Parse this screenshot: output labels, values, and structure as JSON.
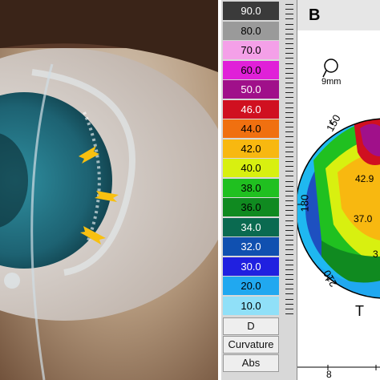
{
  "photo": {
    "arrows": [
      "arrow-1",
      "arrow-2",
      "arrow-3"
    ]
  },
  "scale": {
    "items": [
      {
        "label": "90.0",
        "color": "#3a3a3a",
        "text": "#ffffff"
      },
      {
        "label": "80.0",
        "color": "#9a9a9a",
        "text": "#000000"
      },
      {
        "label": "70.0",
        "color": "#f4a0e8",
        "text": "#000000"
      },
      {
        "label": "60.0",
        "color": "#e020d8",
        "text": "#000000"
      },
      {
        "label": "50.0",
        "color": "#a0108a",
        "text": "#ffffff"
      },
      {
        "label": "46.0",
        "color": "#d01020",
        "text": "#ffffff"
      },
      {
        "label": "44.0",
        "color": "#f07010",
        "text": "#000000"
      },
      {
        "label": "42.0",
        "color": "#f8b810",
        "text": "#000000"
      },
      {
        "label": "40.0",
        "color": "#d8f010",
        "text": "#000000"
      },
      {
        "label": "38.0",
        "color": "#20c020",
        "text": "#000000"
      },
      {
        "label": "36.0",
        "color": "#108a20",
        "text": "#000000"
      },
      {
        "label": "34.0",
        "color": "#0a6a50",
        "text": "#ffffff"
      },
      {
        "label": "32.0",
        "color": "#1050b0",
        "text": "#ffffff"
      },
      {
        "label": "30.0",
        "color": "#2020e0",
        "text": "#ffffff"
      },
      {
        "label": "20.0",
        "color": "#20a8f0",
        "text": "#000000"
      },
      {
        "label": "10.0",
        "color": "#90e0f8",
        "text": "#000000"
      }
    ],
    "unit": "D",
    "mode": "Curvature",
    "type": "Abs"
  },
  "map": {
    "panel_letter": "B",
    "zoom_label": "9mm",
    "angles": [
      "150",
      "180",
      "210"
    ],
    "values": [
      "42.9",
      "37.0",
      "3"
    ],
    "side_label": "T",
    "axis_tick": "8"
  }
}
